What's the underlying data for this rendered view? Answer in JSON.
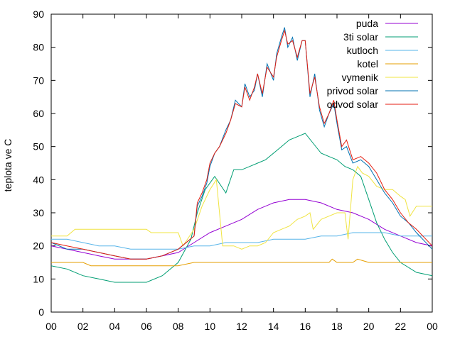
{
  "chart_data": {
    "type": "line",
    "title": "",
    "xlabel": "",
    "ylabel": "teplota ve C",
    "xlim": [
      0,
      24
    ],
    "ylim": [
      0,
      90
    ],
    "x_tick_labels": [
      "00",
      "02",
      "04",
      "06",
      "08",
      "10",
      "12",
      "14",
      "16",
      "18",
      "20",
      "22",
      "00"
    ],
    "y_ticks": [
      0,
      10,
      20,
      30,
      40,
      50,
      60,
      70,
      80,
      90
    ],
    "grid": false,
    "legend_position": "top-right",
    "series": [
      {
        "name": "puda",
        "color": "#9400d3",
        "points": [
          [
            0,
            20
          ],
          [
            1,
            19
          ],
          [
            2,
            18
          ],
          [
            3,
            17
          ],
          [
            4,
            16
          ],
          [
            5,
            16
          ],
          [
            6,
            16
          ],
          [
            7,
            17
          ],
          [
            8,
            18
          ],
          [
            9,
            21
          ],
          [
            10,
            24
          ],
          [
            11,
            26
          ],
          [
            12,
            28
          ],
          [
            13,
            31
          ],
          [
            14,
            33
          ],
          [
            15,
            34
          ],
          [
            16,
            34
          ],
          [
            17,
            33
          ],
          [
            18,
            31
          ],
          [
            19,
            30
          ],
          [
            20,
            28
          ],
          [
            21,
            25
          ],
          [
            22,
            23
          ],
          [
            23,
            21
          ],
          [
            24,
            20
          ]
        ]
      },
      {
        "name": "3ti solar",
        "color": "#009e73",
        "points": [
          [
            0,
            14
          ],
          [
            1,
            13
          ],
          [
            2,
            11
          ],
          [
            3,
            10
          ],
          [
            4,
            9
          ],
          [
            5,
            9
          ],
          [
            6,
            9
          ],
          [
            7,
            11
          ],
          [
            8,
            15
          ],
          [
            8.8,
            22
          ],
          [
            9.2,
            30
          ],
          [
            9.7,
            37
          ],
          [
            10.3,
            41
          ],
          [
            11,
            36
          ],
          [
            11.5,
            43
          ],
          [
            12,
            43
          ],
          [
            12.5,
            44
          ],
          [
            13,
            45
          ],
          [
            13.5,
            46
          ],
          [
            14,
            48
          ],
          [
            14.5,
            50
          ],
          [
            15,
            52
          ],
          [
            15.5,
            53
          ],
          [
            16,
            54
          ],
          [
            16.5,
            51
          ],
          [
            17,
            48
          ],
          [
            17.5,
            47
          ],
          [
            18,
            46
          ],
          [
            18.5,
            44
          ],
          [
            19,
            43
          ],
          [
            19.5,
            41
          ],
          [
            20,
            34
          ],
          [
            20.5,
            27
          ],
          [
            21,
            22
          ],
          [
            21.5,
            18
          ],
          [
            22,
            15
          ],
          [
            23,
            12
          ],
          [
            24,
            11
          ]
        ]
      },
      {
        "name": "kutloch",
        "color": "#56b4e9",
        "points": [
          [
            0,
            22
          ],
          [
            1,
            22
          ],
          [
            2,
            21
          ],
          [
            3,
            20
          ],
          [
            4,
            20
          ],
          [
            5,
            19
          ],
          [
            6,
            19
          ],
          [
            7,
            19
          ],
          [
            8,
            19
          ],
          [
            9,
            20
          ],
          [
            10,
            20
          ],
          [
            11,
            21
          ],
          [
            12,
            21
          ],
          [
            13,
            21
          ],
          [
            14,
            22
          ],
          [
            15,
            22
          ],
          [
            16,
            22
          ],
          [
            17,
            23
          ],
          [
            18,
            23
          ],
          [
            19,
            24
          ],
          [
            20,
            24
          ],
          [
            21,
            24
          ],
          [
            22,
            23
          ],
          [
            23,
            23
          ],
          [
            24,
            23
          ]
        ]
      },
      {
        "name": "kotel",
        "color": "#e69f00",
        "points": [
          [
            0,
            15
          ],
          [
            2,
            15
          ],
          [
            2.5,
            14
          ],
          [
            8,
            14
          ],
          [
            9,
            15
          ],
          [
            17.5,
            15
          ],
          [
            17.7,
            16
          ],
          [
            18,
            15
          ],
          [
            19,
            15
          ],
          [
            19.3,
            16
          ],
          [
            20,
            15
          ],
          [
            24,
            15
          ]
        ]
      },
      {
        "name": "vymenik",
        "color": "#f0e442",
        "points": [
          [
            0,
            23
          ],
          [
            1,
            23
          ],
          [
            1.5,
            25
          ],
          [
            6,
            25
          ],
          [
            6.3,
            24
          ],
          [
            8,
            24
          ],
          [
            8.3,
            20
          ],
          [
            9,
            25
          ],
          [
            9.5,
            32
          ],
          [
            10,
            37
          ],
          [
            10.4,
            40
          ],
          [
            10.8,
            20
          ],
          [
            11.5,
            20
          ],
          [
            12,
            19
          ],
          [
            12.5,
            20
          ],
          [
            13,
            20
          ],
          [
            13.5,
            21
          ],
          [
            14,
            24
          ],
          [
            14.5,
            25
          ],
          [
            15,
            26
          ],
          [
            15.5,
            28
          ],
          [
            16,
            29
          ],
          [
            16.3,
            30
          ],
          [
            16.5,
            25
          ],
          [
            17,
            28
          ],
          [
            17.5,
            29
          ],
          [
            18,
            30
          ],
          [
            18.5,
            30
          ],
          [
            18.7,
            22
          ],
          [
            19,
            40
          ],
          [
            19.3,
            44
          ],
          [
            19.6,
            42
          ],
          [
            20,
            41
          ],
          [
            20.5,
            38
          ],
          [
            21,
            37
          ],
          [
            21.5,
            37
          ],
          [
            22,
            35
          ],
          [
            22.3,
            34
          ],
          [
            22.6,
            29
          ],
          [
            23,
            32
          ],
          [
            24,
            32
          ]
        ]
      },
      {
        "name": "privod solar",
        "color": "#0072b2",
        "points": [
          [
            0,
            21
          ],
          [
            1,
            19
          ],
          [
            2,
            19
          ],
          [
            3,
            18
          ],
          [
            4,
            17
          ],
          [
            5,
            16
          ],
          [
            6,
            16
          ],
          [
            7,
            17
          ],
          [
            8,
            19
          ],
          [
            9,
            23
          ],
          [
            9.2,
            32
          ],
          [
            9.5,
            35
          ],
          [
            9.8,
            39
          ],
          [
            10,
            44
          ],
          [
            10.3,
            48
          ],
          [
            10.6,
            50
          ],
          [
            11,
            55
          ],
          [
            11.3,
            58
          ],
          [
            11.6,
            64
          ],
          [
            12,
            62
          ],
          [
            12.2,
            69
          ],
          [
            12.5,
            65
          ],
          [
            12.8,
            67
          ],
          [
            13,
            72
          ],
          [
            13.3,
            65
          ],
          [
            13.6,
            75
          ],
          [
            14,
            70
          ],
          [
            14.2,
            78
          ],
          [
            14.5,
            83
          ],
          [
            14.7,
            86
          ],
          [
            14.9,
            80
          ],
          [
            15.2,
            83
          ],
          [
            15.5,
            76
          ],
          [
            15.8,
            82
          ],
          [
            16,
            82
          ],
          [
            16.3,
            65
          ],
          [
            16.6,
            72
          ],
          [
            16.9,
            61
          ],
          [
            17.2,
            56
          ],
          [
            17.5,
            60
          ],
          [
            17.8,
            63
          ],
          [
            18,
            57
          ],
          [
            18.3,
            49
          ],
          [
            18.6,
            50
          ],
          [
            19,
            45
          ],
          [
            19.5,
            46
          ],
          [
            20,
            44
          ],
          [
            20.5,
            40
          ],
          [
            21,
            36
          ],
          [
            21.5,
            33
          ],
          [
            22,
            29
          ],
          [
            22.5,
            27
          ],
          [
            23,
            24
          ],
          [
            24,
            19
          ]
        ]
      },
      {
        "name": "odvod solar",
        "color": "#e51e10",
        "points": [
          [
            0,
            21
          ],
          [
            1,
            20
          ],
          [
            2,
            19
          ],
          [
            3,
            18
          ],
          [
            4,
            17
          ],
          [
            5,
            16
          ],
          [
            6,
            16
          ],
          [
            7,
            17
          ],
          [
            8,
            19
          ],
          [
            9,
            23
          ],
          [
            9.2,
            33
          ],
          [
            9.5,
            36
          ],
          [
            9.8,
            40
          ],
          [
            10,
            45
          ],
          [
            10.3,
            48
          ],
          [
            10.6,
            50
          ],
          [
            11,
            54
          ],
          [
            11.3,
            58
          ],
          [
            11.6,
            63
          ],
          [
            12,
            62
          ],
          [
            12.2,
            68
          ],
          [
            12.5,
            64
          ],
          [
            12.8,
            68
          ],
          [
            13,
            72
          ],
          [
            13.3,
            66
          ],
          [
            13.6,
            74
          ],
          [
            14,
            71
          ],
          [
            14.2,
            77
          ],
          [
            14.5,
            82
          ],
          [
            14.7,
            85
          ],
          [
            14.9,
            81
          ],
          [
            15.2,
            82
          ],
          [
            15.5,
            77
          ],
          [
            15.8,
            82
          ],
          [
            16,
            82
          ],
          [
            16.3,
            66
          ],
          [
            16.6,
            71
          ],
          [
            16.9,
            62
          ],
          [
            17.2,
            57
          ],
          [
            17.5,
            60
          ],
          [
            17.8,
            64
          ],
          [
            18,
            58
          ],
          [
            18.3,
            50
          ],
          [
            18.6,
            52
          ],
          [
            19,
            46
          ],
          [
            19.5,
            47
          ],
          [
            20,
            45
          ],
          [
            20.5,
            42
          ],
          [
            21,
            37
          ],
          [
            21.5,
            34
          ],
          [
            22,
            30
          ],
          [
            22.5,
            27
          ],
          [
            23,
            25
          ],
          [
            24,
            20
          ]
        ]
      }
    ]
  }
}
